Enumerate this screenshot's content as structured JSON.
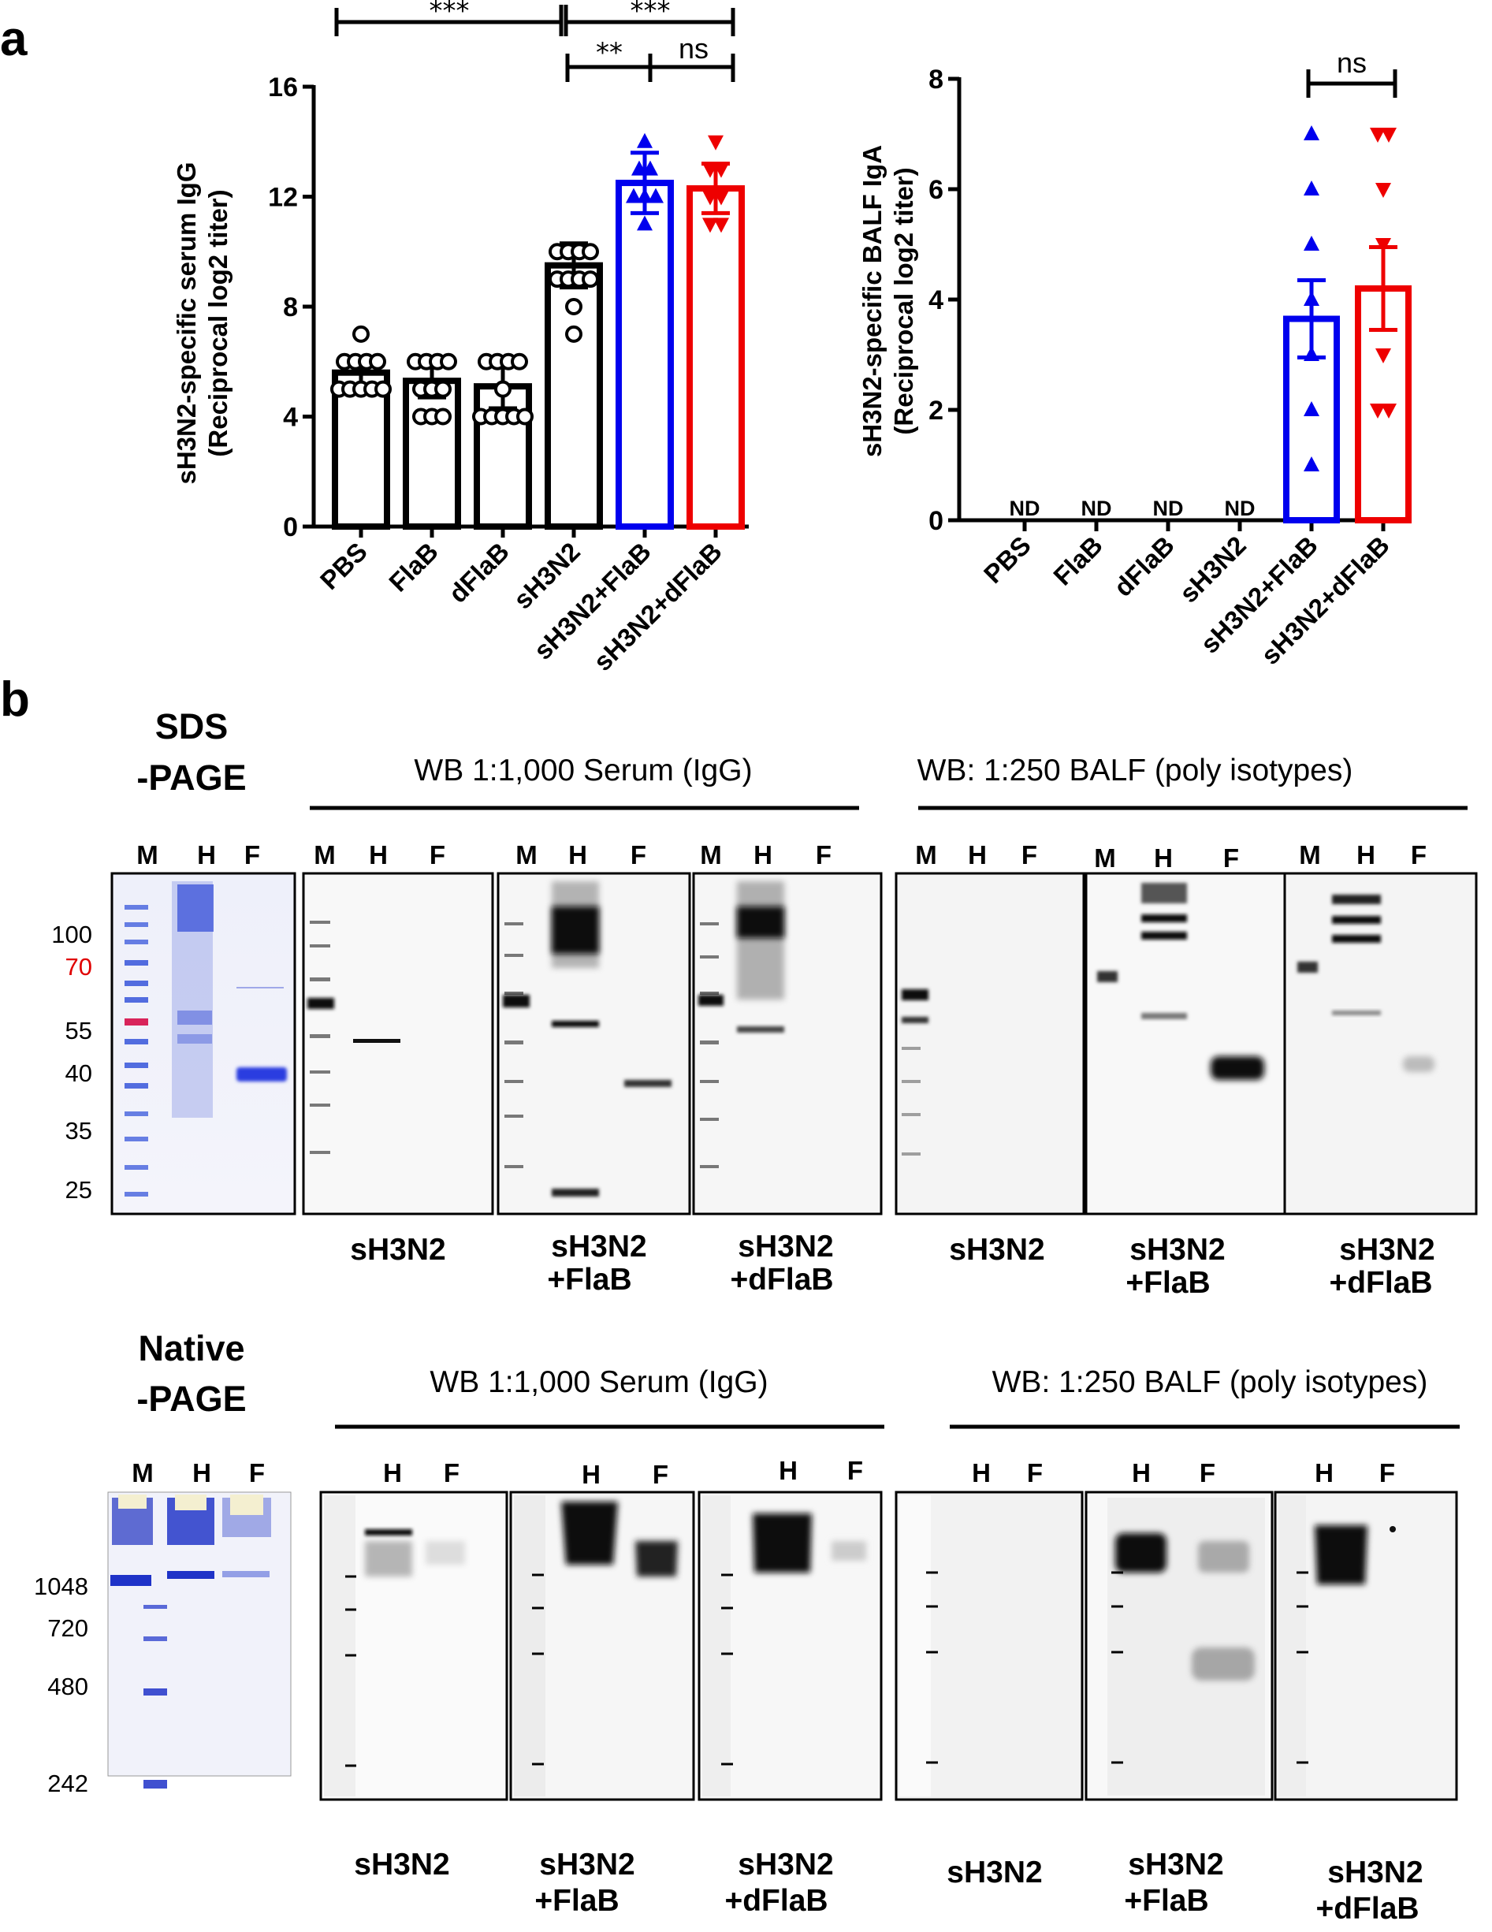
{
  "panel_a": {
    "label": "a",
    "left_chart": {
      "ylabel_line1": "sH3N2-specific serum IgG",
      "ylabel_line2": "(Reciprocal log2 titer)",
      "significance": [
        {
          "from": "PBS",
          "to": "sH3N2",
          "label": "***"
        },
        {
          "from": "sH3N2",
          "to": "sH3N2+dFlaB",
          "label": "***"
        },
        {
          "from": "sH3N2",
          "to": "sH3N2+FlaB",
          "label": "**"
        },
        {
          "from": "sH3N2+FlaB",
          "to": "sH3N2+dFlaB",
          "label": "ns"
        }
      ]
    },
    "right_chart": {
      "ylabel_line1": "sH3N2-specific BALF IgA",
      "ylabel_line2": "(Reciprocal log2 titer)",
      "nd_label": "ND",
      "significance": [
        {
          "from": "sH3N2+FlaB",
          "to": "sH3N2+dFlaB",
          "label": "ns"
        }
      ]
    }
  },
  "chart_data": [
    {
      "type": "bar",
      "title": "",
      "xlabel": "",
      "ylabel": "sH3N2-specific serum IgG (Reciprocal log2 titer)",
      "ylim": [
        0,
        16
      ],
      "yticks": [
        0,
        4,
        8,
        12,
        16
      ],
      "categories": [
        "PBS",
        "FlaB",
        "dFlaB",
        "sH3N2",
        "sH3N2+FlaB",
        "sH3N2+dFlaB"
      ],
      "values": [
        5.6,
        5.3,
        5.1,
        9.5,
        12.5,
        12.3
      ],
      "errors": [
        0.5,
        0.6,
        0.8,
        0.8,
        1.1,
        0.9
      ],
      "colors": [
        "#000000",
        "#000000",
        "#000000",
        "#000000",
        "#0000ee",
        "#ee0000"
      ],
      "markers": [
        "circle",
        "circle",
        "circle",
        "circle",
        "triangle-up",
        "triangle-down"
      ],
      "points": [
        [
          7,
          6,
          6,
          6,
          6,
          5,
          5,
          5,
          5,
          5
        ],
        [
          6,
          6,
          6,
          6,
          5,
          5,
          5,
          4,
          4,
          4
        ],
        [
          6,
          6,
          6,
          6,
          5,
          4,
          4,
          4,
          4,
          4
        ],
        [
          10,
          10,
          10,
          10,
          9,
          9,
          9,
          9,
          8,
          7
        ],
        [
          14,
          13,
          13,
          12,
          12,
          12,
          11
        ],
        [
          14,
          13,
          13,
          12,
          12,
          11,
          11
        ]
      ]
    },
    {
      "type": "bar",
      "title": "",
      "xlabel": "",
      "ylabel": "sH3N2-specific BALF IgA (Reciprocal log2 titer)",
      "ylim": [
        0,
        8
      ],
      "yticks": [
        0,
        2,
        4,
        6,
        8
      ],
      "categories": [
        "PBS",
        "FlaB",
        "dFlaB",
        "sH3N2",
        "sH3N2+FlaB",
        "sH3N2+dFlaB"
      ],
      "values": [
        null,
        null,
        null,
        null,
        3.65,
        4.2
      ],
      "errors": [
        null,
        null,
        null,
        null,
        0.7,
        0.75
      ],
      "annotations": [
        "ND",
        "ND",
        "ND",
        "ND",
        "",
        ""
      ],
      "colors": [
        "#000000",
        "#000000",
        "#000000",
        "#000000",
        "#0000ee",
        "#ee0000"
      ],
      "markers": [
        "",
        "",
        "",
        "",
        "triangle-up",
        "triangle-down"
      ],
      "points": [
        [],
        [],
        [],
        [],
        [
          7,
          6,
          5,
          4,
          3,
          2,
          1
        ],
        [
          7,
          7,
          6,
          5,
          3,
          2,
          2
        ]
      ]
    }
  ],
  "panel_b": {
    "label": "b",
    "sds": {
      "title_line1": "SDS",
      "title_line2": "-PAGE",
      "marker_labels": [
        "100",
        "70",
        "55",
        "40",
        "35",
        "25"
      ],
      "marker_highlight_color": "#e00000",
      "lanes_mhf": [
        "M",
        "H",
        "F"
      ],
      "serum_header": "WB 1:1,000 Serum (IgG)",
      "balf_header": "WB: 1:250 BALF (poly isotypes)",
      "blot_captions": [
        {
          "line1": "sH3N2",
          "line2": ""
        },
        {
          "line1": "sH3N2",
          "line2": "+FlaB"
        },
        {
          "line1": "sH3N2",
          "line2": "+dFlaB"
        },
        {
          "line1": "sH3N2",
          "line2": ""
        },
        {
          "line1": "sH3N2",
          "line2": "+FlaB"
        },
        {
          "line1": "sH3N2",
          "line2": "+dFlaB"
        }
      ]
    },
    "native": {
      "title_line1": "Native",
      "title_line2": "-PAGE",
      "marker_labels": [
        "1048",
        "720",
        "480",
        "242"
      ],
      "lanes_mhf": [
        "M",
        "H",
        "F"
      ],
      "lanes_hf": [
        "H",
        "F"
      ],
      "serum_header": "WB 1:1,000 Serum (IgG)",
      "balf_header": "WB: 1:250 BALF (poly isotypes)",
      "blot_captions": [
        {
          "line1": "sH3N2",
          "line2": ""
        },
        {
          "line1": "sH3N2",
          "line2": "+FlaB"
        },
        {
          "line1": "sH3N2",
          "line2": "+dFlaB"
        },
        {
          "line1": "sH3N2",
          "line2": ""
        },
        {
          "line1": "sH3N2",
          "line2": "+FlaB"
        },
        {
          "line1": "sH3N2",
          "line2": "+dFlaB"
        }
      ]
    }
  }
}
